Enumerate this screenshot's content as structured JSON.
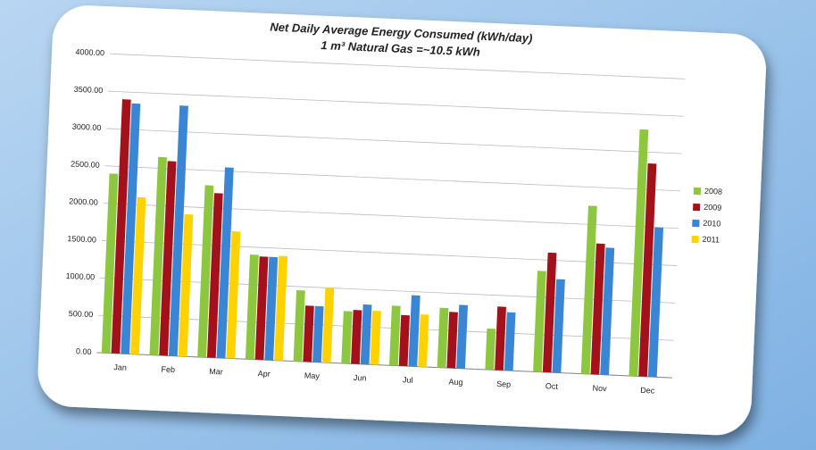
{
  "chart_data": {
    "type": "bar",
    "title": "Net Daily Average Energy Consumed (kWh/day)",
    "subtitle": "1 m³ Natural Gas =~10.5 kWh",
    "categories": [
      "Jan",
      "Feb",
      "Mar",
      "Apr",
      "May",
      "Jun",
      "Jul",
      "Aug",
      "Sep",
      "Oct",
      "Nov",
      "Dec"
    ],
    "series": [
      {
        "name": "2008",
        "color": "#8dc63f",
        "values": [
          2400,
          2650,
          2300,
          1400,
          950,
          700,
          800,
          800,
          550,
          1350,
          2250,
          3300
        ]
      },
      {
        "name": "2009",
        "color": "#a3121a",
        "values": [
          3400,
          2600,
          2200,
          1380,
          750,
          720,
          680,
          750,
          850,
          1600,
          1750,
          2850
        ]
      },
      {
        "name": "2010",
        "color": "#3a85d4",
        "values": [
          3350,
          3350,
          2550,
          1380,
          750,
          800,
          950,
          850,
          780,
          1250,
          1700,
          2000
        ]
      },
      {
        "name": "2011",
        "color": "#ffd200",
        "values": [
          2100,
          1900,
          1700,
          1400,
          1000,
          720,
          700,
          null,
          null,
          null,
          null,
          null
        ]
      }
    ],
    "ylim": [
      0,
      4000
    ],
    "yticks": [
      {
        "value": 0,
        "label": "0.00"
      },
      {
        "value": 500,
        "label": "500.00"
      },
      {
        "value": 1000,
        "label": "1000.00"
      },
      {
        "value": 1500,
        "label": "1500.00"
      },
      {
        "value": 2000,
        "label": "2000.00"
      },
      {
        "value": 2500,
        "label": "2500.00"
      },
      {
        "value": 3000,
        "label": "3000.00"
      },
      {
        "value": 3500,
        "label": "3500.00"
      },
      {
        "value": 4000,
        "label": "4000.00"
      }
    ],
    "grid": true,
    "legend": "right"
  }
}
